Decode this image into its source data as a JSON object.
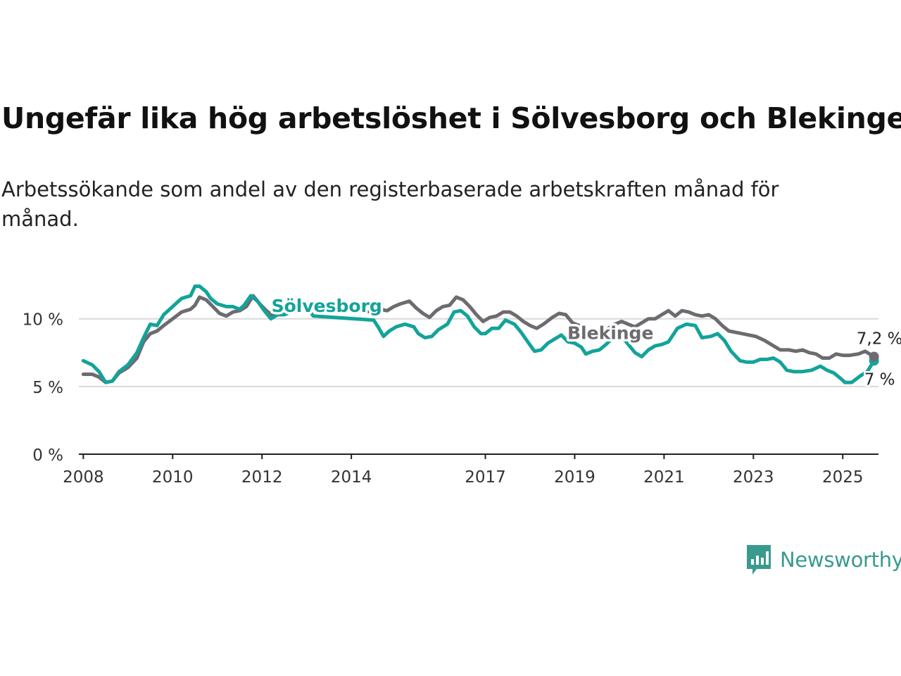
{
  "title": "Ungefär lika hög arbetslöshet i Sölvesborg och Blekinge",
  "subtitle": "Arbetssökande som andel av den registerbaserade arbetskraften månad för månad.",
  "brand": {
    "name": "Newsworthy",
    "icon": "chart-speech-bubble-icon",
    "color": "#3a9a8e"
  },
  "colors": {
    "solvesborg": "#13a39a",
    "blekinge": "#6e6b70",
    "grid": "#d9d9d9",
    "axis": "#222222"
  },
  "chart_data": {
    "type": "line",
    "xlim": [
      2007.9,
      2025.8
    ],
    "ylim": [
      0,
      13
    ],
    "y_ticks": [
      0,
      5,
      10
    ],
    "y_tick_labels": [
      "0 %",
      "5 %",
      "10 %"
    ],
    "x_ticks": [
      2008,
      2010,
      2012,
      2014,
      2017,
      2019,
      2021,
      2023,
      2025
    ],
    "x_tick_labels": [
      "2008",
      "2010",
      "2012",
      "2014",
      "2017",
      "2019",
      "2021",
      "2023",
      "2025"
    ],
    "grid": "horizontal",
    "series": [
      {
        "name": "Sölvesborg",
        "color": "#13a39a",
        "end_label": "7 %",
        "points": [
          [
            2008.0,
            6.9
          ],
          [
            2008.2,
            6.6
          ],
          [
            2008.35,
            6.1
          ],
          [
            2008.5,
            5.3
          ],
          [
            2008.65,
            5.4
          ],
          [
            2008.8,
            6.1
          ],
          [
            2009.0,
            6.6
          ],
          [
            2009.2,
            7.5
          ],
          [
            2009.35,
            8.6
          ],
          [
            2009.5,
            9.6
          ],
          [
            2009.65,
            9.5
          ],
          [
            2009.8,
            10.3
          ],
          [
            2010.0,
            10.9
          ],
          [
            2010.2,
            11.5
          ],
          [
            2010.4,
            11.7
          ],
          [
            2010.5,
            12.4
          ],
          [
            2010.6,
            12.4
          ],
          [
            2010.75,
            12.0
          ],
          [
            2010.85,
            11.5
          ],
          [
            2011.0,
            11.1
          ],
          [
            2011.2,
            10.9
          ],
          [
            2011.35,
            10.9
          ],
          [
            2011.5,
            10.7
          ],
          [
            2011.6,
            11.0
          ],
          [
            2011.75,
            11.7
          ],
          [
            2011.9,
            11.3
          ],
          [
            2012.05,
            10.6
          ],
          [
            2012.2,
            10.0
          ],
          [
            2012.35,
            10.3
          ],
          [
            2012.5,
            10.3
          ],
          [
            2012.65,
            10.5
          ],
          [
            2012.8,
            10.9
          ],
          [
            2012.9,
            11.2
          ],
          [
            2013.0,
            10.8
          ],
          [
            2013.15,
            10.2
          ],
          [
            2014.5,
            9.9
          ],
          [
            2014.6,
            9.4
          ],
          [
            2014.72,
            8.7
          ],
          [
            2014.85,
            9.1
          ],
          [
            2015.0,
            9.4
          ],
          [
            2015.2,
            9.6
          ],
          [
            2015.4,
            9.4
          ],
          [
            2015.5,
            8.9
          ],
          [
            2015.65,
            8.6
          ],
          [
            2015.8,
            8.7
          ],
          [
            2015.95,
            9.2
          ],
          [
            2016.15,
            9.6
          ],
          [
            2016.3,
            10.5
          ],
          [
            2016.45,
            10.6
          ],
          [
            2016.6,
            10.2
          ],
          [
            2016.75,
            9.4
          ],
          [
            2016.9,
            8.9
          ],
          [
            2017.0,
            8.9
          ],
          [
            2017.15,
            9.3
          ],
          [
            2017.3,
            9.3
          ],
          [
            2017.45,
            9.9
          ],
          [
            2017.65,
            9.6
          ],
          [
            2017.8,
            9.0
          ],
          [
            2017.95,
            8.3
          ],
          [
            2018.1,
            7.6
          ],
          [
            2018.25,
            7.7
          ],
          [
            2018.4,
            8.2
          ],
          [
            2018.55,
            8.5
          ],
          [
            2018.7,
            8.8
          ],
          [
            2018.85,
            8.3
          ],
          [
            2019.0,
            8.2
          ],
          [
            2019.15,
            7.9
          ],
          [
            2019.25,
            7.4
          ],
          [
            2019.4,
            7.6
          ],
          [
            2019.55,
            7.7
          ],
          [
            2019.7,
            8.1
          ],
          [
            2019.85,
            8.6
          ],
          [
            2020.0,
            8.9
          ],
          [
            2020.2,
            8.1
          ],
          [
            2020.35,
            7.5
          ],
          [
            2020.5,
            7.2
          ],
          [
            2020.65,
            7.7
          ],
          [
            2020.8,
            8.0
          ],
          [
            2020.95,
            8.1
          ],
          [
            2021.1,
            8.3
          ],
          [
            2021.3,
            9.3
          ],
          [
            2021.5,
            9.6
          ],
          [
            2021.7,
            9.5
          ],
          [
            2021.85,
            8.6
          ],
          [
            2022.05,
            8.7
          ],
          [
            2022.2,
            8.9
          ],
          [
            2022.35,
            8.4
          ],
          [
            2022.5,
            7.6
          ],
          [
            2022.7,
            6.9
          ],
          [
            2022.85,
            6.8
          ],
          [
            2023.0,
            6.8
          ],
          [
            2023.15,
            7.0
          ],
          [
            2023.3,
            7.0
          ],
          [
            2023.45,
            7.1
          ],
          [
            2023.6,
            6.8
          ],
          [
            2023.75,
            6.2
          ],
          [
            2023.9,
            6.1
          ],
          [
            2024.1,
            6.1
          ],
          [
            2024.3,
            6.2
          ],
          [
            2024.5,
            6.5
          ],
          [
            2024.65,
            6.2
          ],
          [
            2024.8,
            6.0
          ],
          [
            2024.95,
            5.6
          ],
          [
            2025.05,
            5.3
          ],
          [
            2025.2,
            5.3
          ],
          [
            2025.4,
            5.8
          ],
          [
            2025.55,
            6.1
          ],
          [
            2025.7,
            6.9
          ]
        ]
      },
      {
        "name": "Blekinge",
        "color": "#6e6b70",
        "end_label": "7,2 %",
        "points": [
          [
            2008.0,
            5.9
          ],
          [
            2008.2,
            5.9
          ],
          [
            2008.35,
            5.7
          ],
          [
            2008.5,
            5.3
          ],
          [
            2008.65,
            5.4
          ],
          [
            2008.8,
            6.0
          ],
          [
            2009.0,
            6.4
          ],
          [
            2009.2,
            7.1
          ],
          [
            2009.35,
            8.3
          ],
          [
            2009.5,
            8.9
          ],
          [
            2009.65,
            9.1
          ],
          [
            2009.8,
            9.5
          ],
          [
            2010.0,
            10.0
          ],
          [
            2010.2,
            10.5
          ],
          [
            2010.4,
            10.7
          ],
          [
            2010.5,
            11.0
          ],
          [
            2010.6,
            11.6
          ],
          [
            2010.75,
            11.4
          ],
          [
            2010.9,
            10.9
          ],
          [
            2011.05,
            10.4
          ],
          [
            2011.2,
            10.2
          ],
          [
            2011.35,
            10.5
          ],
          [
            2011.5,
            10.6
          ],
          [
            2011.65,
            10.9
          ],
          [
            2011.8,
            11.7
          ],
          [
            2011.95,
            11.1
          ],
          [
            2012.1,
            10.6
          ],
          [
            2012.25,
            10.2
          ],
          [
            2012.4,
            10.4
          ],
          [
            2012.55,
            10.7
          ],
          [
            2012.7,
            10.9
          ],
          [
            2012.85,
            11.3
          ],
          [
            2013.0,
            11.2
          ],
          [
            2013.15,
            10.8
          ],
          [
            2014.5,
            10.5
          ],
          [
            2014.65,
            10.7
          ],
          [
            2014.8,
            10.6
          ],
          [
            2014.95,
            10.9
          ],
          [
            2015.1,
            11.1
          ],
          [
            2015.3,
            11.3
          ],
          [
            2015.45,
            10.8
          ],
          [
            2015.6,
            10.4
          ],
          [
            2015.75,
            10.1
          ],
          [
            2015.9,
            10.6
          ],
          [
            2016.05,
            10.9
          ],
          [
            2016.2,
            11.0
          ],
          [
            2016.35,
            11.6
          ],
          [
            2016.5,
            11.4
          ],
          [
            2016.65,
            10.9
          ],
          [
            2016.8,
            10.3
          ],
          [
            2016.95,
            9.8
          ],
          [
            2017.1,
            10.1
          ],
          [
            2017.25,
            10.2
          ],
          [
            2017.4,
            10.5
          ],
          [
            2017.55,
            10.5
          ],
          [
            2017.7,
            10.2
          ],
          [
            2017.85,
            9.8
          ],
          [
            2018.0,
            9.5
          ],
          [
            2018.15,
            9.3
          ],
          [
            2018.3,
            9.6
          ],
          [
            2018.5,
            10.1
          ],
          [
            2018.65,
            10.4
          ],
          [
            2018.8,
            10.3
          ],
          [
            2018.95,
            9.7
          ],
          [
            2019.1,
            9.5
          ],
          [
            2019.25,
            9.2
          ],
          [
            2019.45,
            8.6
          ],
          [
            2019.6,
            9.0
          ],
          [
            2019.75,
            9.3
          ],
          [
            2019.9,
            9.6
          ],
          [
            2020.05,
            9.8
          ],
          [
            2020.2,
            9.6
          ],
          [
            2020.35,
            9.4
          ],
          [
            2020.5,
            9.7
          ],
          [
            2020.65,
            10.0
          ],
          [
            2020.8,
            10.0
          ],
          [
            2020.95,
            10.3
          ],
          [
            2021.1,
            10.6
          ],
          [
            2021.25,
            10.2
          ],
          [
            2021.4,
            10.6
          ],
          [
            2021.55,
            10.5
          ],
          [
            2021.7,
            10.3
          ],
          [
            2021.85,
            10.2
          ],
          [
            2022.0,
            10.3
          ],
          [
            2022.15,
            10.0
          ],
          [
            2022.3,
            9.5
          ],
          [
            2022.45,
            9.1
          ],
          [
            2022.6,
            9.0
          ],
          [
            2022.75,
            8.9
          ],
          [
            2022.9,
            8.8
          ],
          [
            2023.05,
            8.7
          ],
          [
            2023.25,
            8.4
          ],
          [
            2023.45,
            8.0
          ],
          [
            2023.6,
            7.7
          ],
          [
            2023.8,
            7.7
          ],
          [
            2023.95,
            7.6
          ],
          [
            2024.1,
            7.7
          ],
          [
            2024.25,
            7.5
          ],
          [
            2024.4,
            7.4
          ],
          [
            2024.55,
            7.1
          ],
          [
            2024.7,
            7.1
          ],
          [
            2024.85,
            7.4
          ],
          [
            2025.0,
            7.3
          ],
          [
            2025.15,
            7.3
          ],
          [
            2025.35,
            7.4
          ],
          [
            2025.5,
            7.6
          ],
          [
            2025.7,
            7.2
          ]
        ]
      }
    ],
    "series_labels": [
      {
        "text": "Sölvesborg",
        "series": "Sölvesborg",
        "x": 2013.45,
        "y": 10.5
      },
      {
        "text": "Blekinge",
        "series": "Blekinge",
        "x": 2019.8,
        "y": 8.5
      }
    ]
  }
}
